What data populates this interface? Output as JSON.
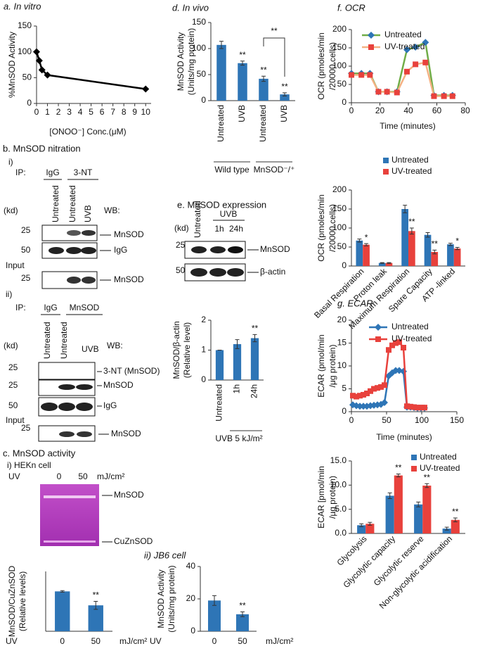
{
  "chart_data": [
    {
      "type": "line",
      "title": "a. In vitro",
      "ylabel": [
        "%MnSOD Activity"
      ],
      "xlabel": "[ONOO⁻] Conc.(μM)",
      "x": [
        0,
        0.25,
        0.5,
        1,
        10
      ],
      "series": [
        {
          "color": "#000000",
          "marker": "diamond",
          "values": [
            100,
            83,
            65,
            55,
            28
          ]
        }
      ],
      "xlim": [
        0,
        10.5
      ],
      "ylim": [
        0,
        150
      ],
      "xticks": [
        0,
        1,
        2,
        3,
        4,
        5,
        6,
        7,
        8,
        9,
        10
      ],
      "yticks": [
        0,
        50,
        100,
        150
      ]
    },
    {
      "type": "bar",
      "title": "d. In vivo",
      "ylabel": [
        "MnSOD Activity",
        "(Units/mg protein)"
      ],
      "categories": [
        "Untreated",
        "UVB",
        "Untreated",
        "UVB"
      ],
      "groups": [
        "Wild type",
        "MnSOD⁻/⁺"
      ],
      "series": [
        {
          "color": "#2e75b6",
          "values": [
            107,
            72,
            42,
            12
          ],
          "errors": [
            7,
            4,
            5,
            3
          ],
          "significance": [
            null,
            "**",
            "**",
            "**"
          ]
        }
      ],
      "bracket_label": "**",
      "ylim": [
        0,
        150
      ],
      "yticks": [
        0,
        50,
        100,
        150
      ]
    },
    {
      "type": "line",
      "title": "f. OCR",
      "ylabel": [
        "OCR (pmoles/min",
        "/20000 cells)"
      ],
      "xlabel": "Time (minutes)",
      "x": [
        0,
        7,
        13,
        19,
        25,
        32,
        39,
        45,
        52,
        58,
        65,
        71
      ],
      "series": [
        {
          "name": "Untreated",
          "color": "#2e75b6",
          "line_color": "#70ad47",
          "marker": "diamond",
          "values": [
            80,
            80,
            80,
            30,
            30,
            30,
            145,
            152,
            165,
            20,
            20,
            20
          ]
        },
        {
          "name": "UV-treated",
          "color": "#e8413c",
          "line_color": "#f4b183",
          "marker": "square",
          "values": [
            76,
            76,
            76,
            30,
            30,
            28,
            85,
            105,
            110,
            18,
            18,
            18
          ]
        }
      ],
      "xlim": [
        0,
        80
      ],
      "ylim": [
        0,
        200
      ],
      "xticks": [
        0,
        20,
        40,
        60,
        80
      ],
      "yticks": [
        0,
        50,
        100,
        150,
        200
      ],
      "legend": "top-left"
    },
    {
      "type": "bar",
      "ylabel": [
        "OCR (pmoles/min",
        "/20000 cells)"
      ],
      "categories": [
        "Basal Respiration",
        "Proton leak",
        "Maximum Respiration",
        "Spare Capacity",
        "ATP -linked"
      ],
      "series": [
        {
          "name": "Untreated",
          "color": "#2e75b6",
          "values": [
            67,
            8,
            150,
            82,
            57
          ],
          "errors": [
            4,
            1,
            10,
            6,
            3
          ],
          "significance": [
            null,
            null,
            null,
            null,
            null
          ]
        },
        {
          "name": "UV-treated",
          "color": "#e8413c",
          "values": [
            56,
            8,
            92,
            37,
            46
          ],
          "errors": [
            3,
            1,
            8,
            5,
            3
          ],
          "significance": [
            "*",
            null,
            "**",
            "**",
            "*"
          ]
        }
      ],
      "ylim": [
        0,
        200
      ],
      "yticks": [
        0,
        50,
        100,
        150,
        200
      ],
      "legend": "top"
    },
    {
      "type": "bar",
      "ylabel": [
        "MnSOD/β-actin",
        "(Relative level)"
      ],
      "xlabel": "UVB 5 kJ/m²",
      "categories": [
        "Untreated",
        "1h",
        "24h"
      ],
      "series": [
        {
          "color": "#2e75b6",
          "values": [
            1,
            1.2,
            1.4
          ],
          "errors": [
            0,
            0.15,
            0.12
          ],
          "significance": [
            null,
            null,
            "**"
          ]
        }
      ],
      "ylim": [
        0,
        2
      ],
      "yticks": [
        0,
        1,
        2
      ]
    },
    {
      "type": "line",
      "title": "g. ECAR",
      "ylabel": [
        "ECAR (pmol/min",
        "/μg protein)"
      ],
      "xlabel": "Time (minutes)",
      "x": [
        2,
        7,
        12,
        17,
        22,
        27,
        32,
        37,
        42,
        47,
        53,
        58,
        63,
        68,
        74,
        79,
        84,
        89,
        94,
        99,
        104
      ],
      "series": [
        {
          "name": "Untreated",
          "color": "#2e75b6",
          "marker": "diamond",
          "values": [
            1.5,
            1.3,
            1.2,
            1.2,
            1.2,
            1.3,
            1.4,
            1.5,
            1.6,
            2.0,
            7.8,
            8.5,
            9.0,
            9.0,
            8.8,
            1.0,
            1.0,
            0.9,
            0.8,
            0.8,
            0.8
          ]
        },
        {
          "name": "UV-treated",
          "color": "#e8413c",
          "marker": "square",
          "values": [
            3.5,
            3.3,
            3.5,
            3.7,
            4.0,
            4.5,
            5.0,
            5.2,
            5.4,
            5.8,
            13.5,
            14.5,
            15.0,
            15.2,
            14.0,
            1.2,
            1.1,
            1.0,
            0.9,
            0.9,
            0.9
          ]
        }
      ],
      "xlim": [
        0,
        150
      ],
      "ylim": [
        0,
        20
      ],
      "xticks": [
        0,
        50,
        100,
        150
      ],
      "yticks": [
        0,
        5,
        10,
        15,
        20
      ],
      "legend": "top-left"
    },
    {
      "type": "bar",
      "ylabel": [
        "ECAR [pmol/min",
        "/µg protein)"
      ],
      "categories": [
        "Glycolysis",
        "Glycolytic capacity",
        "Glycolytic reserve",
        "Non-glycolytic acidification"
      ],
      "series": [
        {
          "name": "Untreated",
          "color": "#2e75b6",
          "values": [
            1.7,
            7.8,
            6.0,
            1.0
          ],
          "errors": [
            0.3,
            0.6,
            0.5,
            0.3
          ],
          "significance": [
            null,
            null,
            null,
            null
          ]
        },
        {
          "name": "UV-treated",
          "color": "#e8413c",
          "values": [
            2.0,
            12.0,
            9.9,
            2.8
          ],
          "errors": [
            0.3,
            0.3,
            0.4,
            0.4
          ],
          "significance": [
            null,
            "**",
            "**",
            "**"
          ]
        }
      ],
      "ylim": [
        0,
        15
      ],
      "yticks": [
        {
          "value": 0,
          "label": "0.0"
        },
        {
          "value": 5,
          "label": "5.0"
        },
        {
          "value": 10,
          "label": "10.0"
        },
        {
          "value": 15,
          "label": "15.0"
        }
      ],
      "legend": "top"
    },
    {
      "type": "bar",
      "ylabel": [
        "MnSOD/CuZnSOD",
        "(Relative levels)"
      ],
      "axis_name": "UV",
      "unit": "mJ/cm²",
      "categories": [
        "0",
        "50"
      ],
      "series": [
        {
          "color": "#2e75b6",
          "values": [
            1.0,
            0.65
          ],
          "errors": [
            0.02,
            0.1
          ],
          "significance": [
            null,
            "**"
          ]
        }
      ],
      "ylim": [
        0,
        1.5
      ]
    },
    {
      "type": "bar",
      "title": "ii) JB6 cell",
      "ylabel": [
        "MnSOD Activity",
        "(Units/mg protein)"
      ],
      "axis_name": "UV",
      "unit": "mJ/cm²",
      "categories": [
        "0",
        "50"
      ],
      "series": [
        {
          "color": "#2e75b6",
          "values": [
            19,
            10.5
          ],
          "errors": [
            3,
            1.5
          ],
          "significance": [
            null,
            "**"
          ]
        }
      ],
      "ylim": [
        0,
        40
      ],
      "yticks": [
        0,
        20,
        40
      ]
    }
  ],
  "blots": {
    "b_title": "b. MnSOD nitration",
    "b_i": {
      "label": "i)",
      "ip": "IP:",
      "ip_groups": [
        "IgG",
        "3-NT"
      ],
      "kd": "(kd)",
      "lanes": [
        "Untreated",
        "Untreated",
        "UVB"
      ],
      "wb": "WB:",
      "markers": [
        "25",
        "50"
      ],
      "bands": [
        "MnSOD",
        "IgG"
      ],
      "input": "Input",
      "input_marker": "25",
      "input_band": "MnSOD"
    },
    "b_ii": {
      "label": "ii)",
      "ip": "IP:",
      "ip_groups": [
        "IgG",
        "MnSOD"
      ],
      "kd": "(kd)",
      "lanes": [
        "Untreated",
        "Untreated",
        "UVB"
      ],
      "wb": "WB:",
      "markers": [
        "25",
        "25",
        "50"
      ],
      "bands": [
        "3-NT (MnSOD)",
        "MnSOD",
        "IgG"
      ],
      "input": "Input",
      "input_marker": "25",
      "input_band": "MnSOD"
    },
    "c_title": "c. MnSOD activity",
    "c_i": {
      "label": "i) HEKn cell",
      "uv": "UV",
      "doses": [
        "0",
        "50"
      ],
      "unit": "mJ/cm²",
      "bands": [
        "MnSOD",
        "CuZnSOD"
      ]
    },
    "e_title": "e. MnSOD expression",
    "e": {
      "kd": "(kd)",
      "lanes": [
        "Untreated",
        "1h",
        "24h"
      ],
      "treatment": "UVB",
      "markers": [
        "25",
        "50"
      ],
      "bands": [
        "MnSOD",
        "β-actin"
      ]
    }
  }
}
